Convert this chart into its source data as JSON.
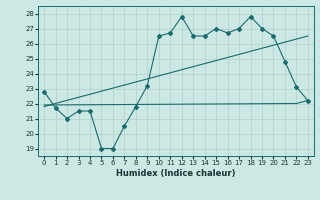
{
  "title": "",
  "xlabel": "Humidex (Indice chaleur)",
  "ylabel": "",
  "bg_color": "#cce8e4",
  "grid_color": "#b0d0cc",
  "line_color": "#1a6b6b",
  "ylim": [
    18.5,
    28.5
  ],
  "xlim": [
    -0.5,
    23.5
  ],
  "yticks": [
    19,
    20,
    21,
    22,
    23,
    24,
    25,
    26,
    27,
    28
  ],
  "xticks": [
    0,
    1,
    2,
    3,
    4,
    5,
    6,
    7,
    8,
    9,
    10,
    11,
    12,
    13,
    14,
    15,
    16,
    17,
    18,
    19,
    20,
    21,
    22,
    23
  ],
  "line1_x": [
    0,
    1,
    2,
    3,
    4,
    5,
    6,
    7,
    8,
    9,
    10,
    11,
    12,
    13,
    14,
    15,
    16,
    17,
    18,
    19,
    20,
    21,
    22,
    23
  ],
  "line1_y": [
    22.8,
    21.7,
    21.0,
    21.5,
    21.5,
    19.0,
    19.0,
    20.5,
    21.8,
    23.2,
    26.5,
    26.7,
    27.8,
    26.5,
    26.5,
    27.0,
    26.7,
    27.0,
    27.8,
    27.0,
    26.5,
    24.8,
    23.1,
    22.2
  ],
  "line2_x": [
    0,
    23
  ],
  "line2_y": [
    21.8,
    26.5
  ],
  "line3_x": [
    0,
    22,
    23
  ],
  "line3_y": [
    21.9,
    22.0,
    22.2
  ]
}
